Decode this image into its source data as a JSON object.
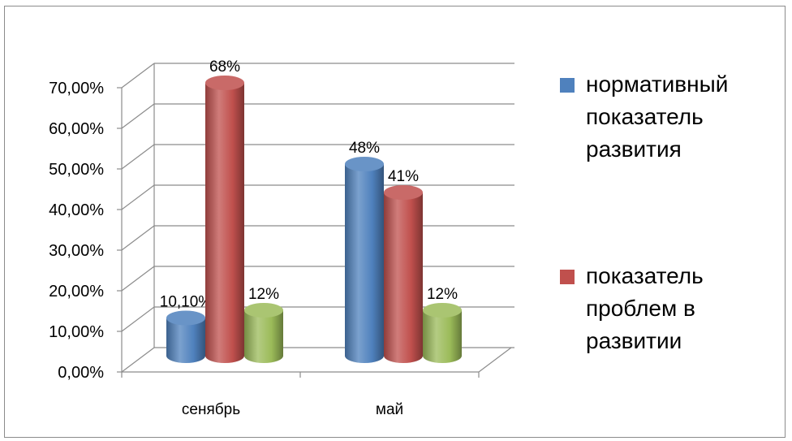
{
  "chart_data": {
    "type": "bar",
    "categories": [
      "сенябрь",
      "май"
    ],
    "ylim": [
      0,
      0.7
    ],
    "yticks": [
      0,
      0.1,
      0.2,
      0.3,
      0.4,
      0.5,
      0.6,
      0.7
    ],
    "ytick_labels": [
      "0,00%",
      "10,00%",
      "20,00%",
      "30,00%",
      "40,00%",
      "50,00%",
      "60,00%",
      "70,00%"
    ],
    "grid": true,
    "legend_position": "right",
    "series": [
      {
        "name": "нормативный показатель развития",
        "color": "#4f81bd",
        "values": [
          0.101,
          0.48
        ],
        "labels": [
          "10,10%",
          "48%"
        ]
      },
      {
        "name": "показатель проблем в развитии",
        "color": "#c0504d",
        "values": [
          0.68,
          0.41
        ],
        "labels": [
          "68%",
          "41%"
        ]
      },
      {
        "name": "",
        "color": "#9bbb59",
        "values": [
          0.12,
          0.12
        ],
        "labels": [
          "12%",
          "12%"
        ]
      }
    ]
  },
  "legend": {
    "items": [
      {
        "lines": [
          "нормативный",
          "показатель",
          "развития"
        ],
        "color": "#4f81bd"
      },
      {
        "lines": [
          "показатель",
          "проблем в",
          "развитии"
        ],
        "color": "#c0504d"
      }
    ]
  }
}
